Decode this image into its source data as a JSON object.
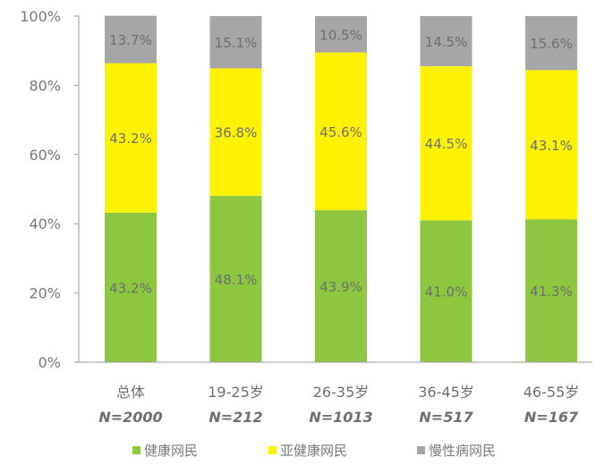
{
  "chart_data": {
    "type": "bar",
    "stacked": true,
    "percent_stacked": true,
    "categories": [
      "总体",
      "19-25岁",
      "26-35岁",
      "36-45岁",
      "46-55岁"
    ],
    "sample_sizes": [
      "N=2000",
      "N=212",
      "N=1013",
      "N=517",
      "N=167"
    ],
    "series": [
      {
        "name": "健康网民",
        "values": [
          43.2,
          48.1,
          43.9,
          41.0,
          41.3
        ],
        "labels": [
          "43.2%",
          "48.1%",
          "43.9%",
          "41.0%",
          "41.3%"
        ],
        "color": "#8dc63f"
      },
      {
        "name": "亚健康网民",
        "values": [
          43.2,
          36.8,
          45.6,
          44.5,
          43.1
        ],
        "labels": [
          "43.2%",
          "36.8%",
          "45.6%",
          "44.5%",
          "43.1%"
        ],
        "color": "#fff200"
      },
      {
        "name": "慢性病网民",
        "values": [
          13.7,
          15.1,
          10.5,
          14.5,
          15.6
        ],
        "labels": [
          "13.7%",
          "15.1%",
          "10.5%",
          "14.5%",
          "15.6%"
        ],
        "color": "#a6a6a6"
      }
    ],
    "ylim": [
      0,
      100
    ],
    "yticks": [
      0,
      20,
      40,
      60,
      80,
      100
    ],
    "ytick_labels": [
      "0%",
      "20%",
      "40%",
      "60%",
      "80%",
      "100%"
    ],
    "legend_position": "bottom",
    "grid": false,
    "label_color": "#7a7a7a",
    "axis_color": "#9a9a9a"
  }
}
